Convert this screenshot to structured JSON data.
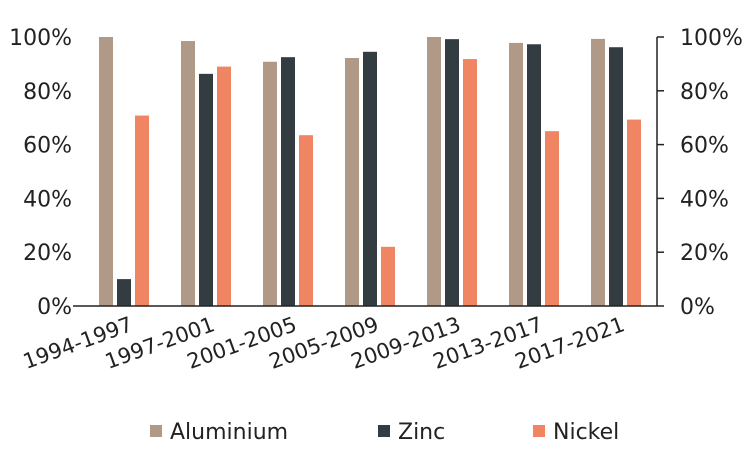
{
  "chart_data": {
    "type": "bar",
    "categories": [
      "1994-1997",
      "1997-2001",
      "2001-2005",
      "2005-2009",
      "2009-2013",
      "2013-2017",
      "2017-2021"
    ],
    "series": [
      {
        "name": "Aluminium",
        "color": "#b09a87",
        "values": [
          100,
          98.5,
          90.8,
          92.2,
          100,
          97.8,
          99.3
        ]
      },
      {
        "name": "Zinc",
        "color": "#333c40",
        "values": [
          10,
          86.3,
          92.5,
          94.5,
          99.2,
          97.3,
          96.2
        ]
      },
      {
        "name": "Nickel",
        "color": "#ef8563",
        "values": [
          70.8,
          89,
          63.5,
          22,
          91.8,
          65,
          69.3
        ]
      }
    ],
    "ylim": [
      0,
      100
    ],
    "y_ticks": [
      0,
      20,
      40,
      60,
      80,
      100
    ],
    "y_tick_labels": [
      "0%",
      "20%",
      "40%",
      "60%",
      "80%",
      "100%"
    ],
    "y_axis_sides": [
      "left",
      "right"
    ],
    "grid": false,
    "legend_position": "bottom",
    "title": "",
    "xlabel": "",
    "ylabel": ""
  }
}
